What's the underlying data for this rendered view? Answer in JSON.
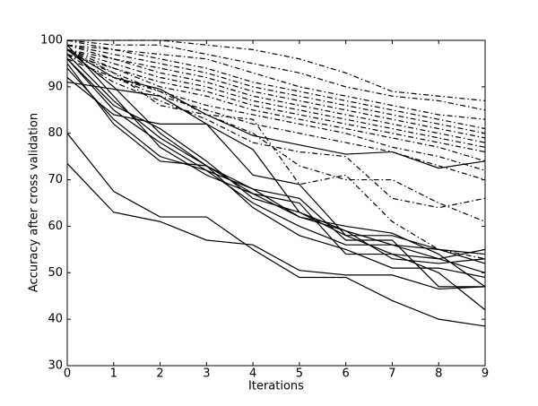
{
  "chart_data": {
    "type": "line",
    "x_label": "Iterations",
    "y_label": "Accuracy after cross validation",
    "x": [
      0,
      1,
      2,
      3,
      4,
      5,
      6,
      7,
      8,
      9
    ],
    "xlim": [
      0,
      9
    ],
    "xticks": [
      0,
      1,
      2,
      3,
      4,
      5,
      6,
      7,
      8,
      9
    ],
    "ylim": [
      30,
      100
    ],
    "yticks": [
      30,
      40,
      50,
      60,
      70,
      80,
      90,
      100
    ],
    "grid": false,
    "series": [
      {
        "color": "#000000",
        "style": "solid",
        "values": [
          98,
          92,
          89.5,
          84,
          79.5,
          77.5,
          75.5,
          76,
          72.5,
          74
        ]
      },
      {
        "color": "#000000",
        "style": "solid",
        "values": [
          91,
          89.5,
          88,
          82,
          76.5,
          63,
          58,
          58,
          55,
          52
        ]
      },
      {
        "color": "#000000",
        "style": "solid",
        "values": [
          92,
          84,
          82,
          82,
          71,
          69,
          58,
          54,
          53,
          55
        ]
      },
      {
        "color": "#000000",
        "style": "solid",
        "values": [
          97,
          87,
          79,
          73,
          68,
          62,
          60,
          58.5,
          54,
          47
        ]
      },
      {
        "color": "#000000",
        "style": "solid",
        "values": [
          98,
          90,
          80,
          73,
          67,
          62,
          59,
          56,
          55,
          54
        ]
      },
      {
        "color": "#000000",
        "style": "solid",
        "values": [
          96,
          85,
          78,
          72,
          65,
          60,
          56,
          56,
          53,
          50
        ]
      },
      {
        "color": "#000000",
        "style": "solid",
        "values": [
          95,
          82,
          74,
          73,
          64,
          58,
          55,
          51,
          51,
          49
        ]
      },
      {
        "color": "#000000",
        "style": "solid",
        "values": [
          99,
          88,
          77,
          71,
          67,
          65,
          54,
          54,
          50,
          42
        ]
      },
      {
        "color": "#000000",
        "style": "solid",
        "values": [
          94,
          83,
          75,
          72,
          68,
          66,
          57,
          57,
          47,
          47
        ]
      },
      {
        "color": "#000000",
        "style": "solid",
        "values": [
          80,
          67.5,
          62,
          62,
          55,
          49,
          49,
          44,
          40,
          38.5
        ]
      },
      {
        "color": "#000000",
        "style": "solid",
        "values": [
          73.5,
          63,
          61,
          57,
          56,
          50.5,
          49.5,
          49.5,
          46.5,
          47
        ]
      },
      {
        "color": "#000000",
        "style": "solid",
        "values": [
          96,
          86,
          81,
          74,
          66,
          63,
          59,
          53,
          52,
          53
        ]
      },
      {
        "color": "#000000",
        "style": "dashdot",
        "values": [
          100,
          100,
          100,
          99,
          98,
          96,
          93,
          89,
          88,
          87
        ]
      },
      {
        "color": "#000000",
        "style": "dashdot",
        "values": [
          100,
          99,
          99,
          97,
          95,
          93,
          90,
          88,
          87,
          85
        ]
      },
      {
        "color": "#000000",
        "style": "dashdot",
        "values": [
          99,
          98,
          97,
          96,
          93,
          90,
          88,
          86,
          84,
          83
        ]
      },
      {
        "color": "#000000",
        "style": "dashdot",
        "values": [
          100,
          98,
          96,
          94,
          91,
          89,
          87,
          85,
          83,
          81
        ]
      },
      {
        "color": "#000000",
        "style": "dashdot",
        "values": [
          99,
          97,
          95,
          93,
          90,
          88,
          86,
          84,
          82,
          80
        ]
      },
      {
        "color": "#000000",
        "style": "dashdot",
        "values": [
          98,
          96,
          94,
          92,
          89,
          87,
          85,
          83,
          81,
          79
        ]
      },
      {
        "color": "#000000",
        "style": "dashdot",
        "values": [
          99,
          96,
          93,
          91,
          88,
          86,
          84,
          82,
          80,
          78
        ]
      },
      {
        "color": "#000000",
        "style": "dashdot",
        "values": [
          98,
          95,
          92,
          90,
          87,
          85,
          83,
          81,
          79,
          77
        ]
      },
      {
        "color": "#000000",
        "style": "dashdot",
        "values": [
          97,
          94,
          91,
          89,
          86,
          84,
          82,
          80,
          78,
          76
        ]
      },
      {
        "color": "#000000",
        "style": "dashdot",
        "values": [
          98,
          94,
          90,
          88,
          85,
          83,
          81,
          79,
          77,
          74
        ]
      },
      {
        "color": "#000000",
        "style": "dashdot",
        "values": [
          97,
          93,
          89,
          86,
          84,
          82,
          80,
          77,
          75,
          72
        ]
      },
      {
        "color": "#000000",
        "style": "dashdot",
        "values": [
          96,
          92,
          88,
          85,
          82,
          80,
          78,
          76,
          73,
          70
        ]
      },
      {
        "color": "#000000",
        "style": "dashdot",
        "values": [
          98,
          93,
          86,
          84,
          80,
          73,
          70,
          70,
          65,
          61
        ]
      },
      {
        "color": "#000000",
        "style": "dashdot",
        "values": [
          97,
          91,
          87,
          83,
          78,
          76,
          75,
          66,
          64,
          66
        ]
      },
      {
        "color": "#000000",
        "style": "dashdot",
        "values": [
          96,
          92,
          89,
          84,
          83,
          69,
          71,
          61,
          55,
          53
        ]
      }
    ]
  }
}
